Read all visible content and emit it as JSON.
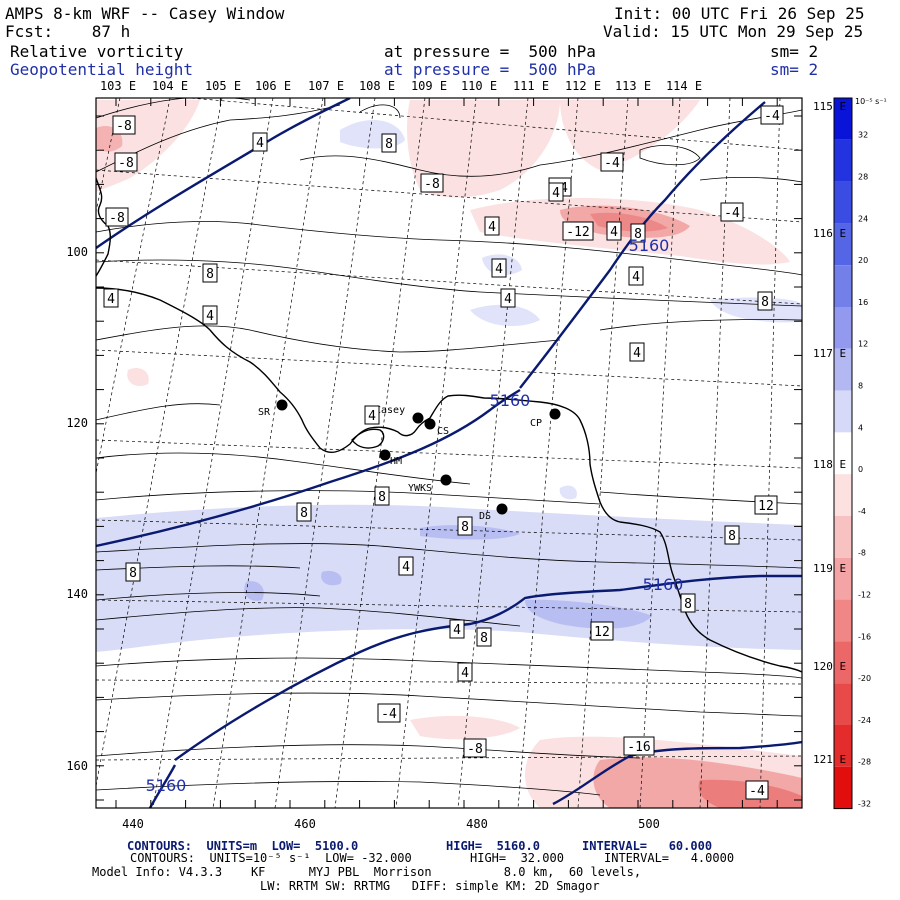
{
  "header": {
    "title": "AMPS 8-km WRF -- Casey Window",
    "init": "Init: 00 UTC Fri 26 Sep 25",
    "fcst": "Fcst:    87 h",
    "valid": "Valid: 15 UTC Mon 29 Sep 25",
    "field1_name": "Relative vorticity",
    "field1_level": "at pressure =  500 hPa",
    "field1_sm": "sm= 2",
    "field2_name": "Geopotential height",
    "field2_level": "at pressure =  500 hPa",
    "field2_sm": "sm= 2"
  },
  "top_lon_labels": [
    "103 E",
    "104 E",
    "105 E",
    "106 E",
    "107 E",
    "108 E",
    "109 E",
    "110 E",
    "111 E",
    "112 E",
    "113 E",
    "114 E"
  ],
  "right_lon_labels": [
    "115 E",
    "116 E",
    "117 E",
    "118 E",
    "119 E",
    "120 E",
    "121 E"
  ],
  "x_axis_ticks": [
    "440",
    "460",
    "480",
    "500"
  ],
  "y_axis_ticks": [
    "100",
    "120",
    "140",
    "160"
  ],
  "stations": [
    {
      "id": "SR",
      "label": "SR"
    },
    {
      "id": "casey",
      "label": "Casey"
    },
    {
      "id": "CS",
      "label": "CS"
    },
    {
      "id": "CP",
      "label": "CP"
    },
    {
      "id": "HM",
      "label": "HM"
    },
    {
      "id": "YWKS",
      "label": "YWKS"
    },
    {
      "id": "DS",
      "label": "DS"
    }
  ],
  "height_contour_labels": [
    "5160",
    "5160",
    "5160",
    "5160"
  ],
  "vorticity_labels": [
    "-8",
    "-8",
    "4",
    "8",
    "-4",
    "-4",
    "-8",
    "-4",
    "-8",
    "-12",
    "4",
    "-4",
    "4",
    "8",
    "8",
    "4",
    "4",
    "4",
    "8",
    "4",
    "4",
    "4",
    "4",
    "8",
    "8",
    "12",
    "8",
    "8",
    "4",
    "8",
    "8",
    "12",
    "8",
    "4",
    "4",
    "-4",
    "-8",
    "-16",
    "-4",
    "4"
  ],
  "colorbar": {
    "unit": "10⁻⁵ s⁻¹",
    "ticks": [
      "32",
      "28",
      "24",
      "20",
      "16",
      "12",
      "8",
      "4",
      "0",
      "-4",
      "-8",
      "-12",
      "-16",
      "-20",
      "-24",
      "-28",
      "-32"
    ],
    "colors_top_to_bottom": [
      "#0a14d8",
      "#2433e0",
      "#3a4ce2",
      "#5466e6",
      "#7380ea",
      "#9299ee",
      "#b3b8f2",
      "#d6d9f8",
      "#ffffff",
      "#fde0e0",
      "#f8c2c2",
      "#f4a4a4",
      "#f08686",
      "#ec6868",
      "#e84a4a",
      "#e52c2c",
      "#e20e0e"
    ]
  },
  "footer": {
    "line1_a": "CONTOURS:  UNITS=m  LOW=  5100.0",
    "line1_b": "HIGH=  5160.0",
    "line1_c": "INTERVAL=   60.000",
    "line2_a": "CONTOURS:  UNITS=10⁻⁵ s⁻¹  LOW= -32.000",
    "line2_b": "HIGH=  32.000",
    "line2_c": "INTERVAL=   4.0000",
    "line3": "Model Info: V4.3.3    KF      MYJ PBL  Morrison          8.0 km,  60 levels,",
    "line4": "LW: RRTM SW: RRTMG   DIFF: simple KM: 2D Smagor"
  },
  "colors": {
    "height_line": "#0a1a70",
    "coast": "#000000",
    "pos_fill": "#d8dcf7",
    "pos_fill2": "#aeb4ef",
    "neg_fill": "#fbe1e1",
    "neg_fill2": "#f3a8a8",
    "neg_fill3": "#ee8585"
  }
}
